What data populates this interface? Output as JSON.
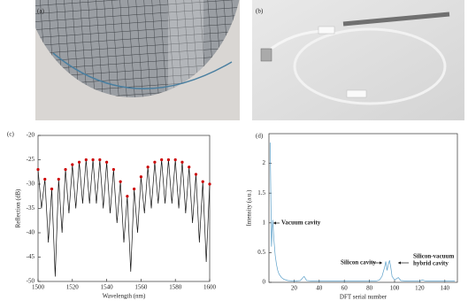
{
  "panel_labels": [
    "(a)",
    "(b)",
    "(c)",
    "(d)"
  ],
  "chart_data": [
    {
      "type": "line",
      "xlabel": "Wavelength (nm)",
      "ylabel": "Reflection (dB)",
      "xlim": [
        1500,
        1600
      ],
      "xticks": [
        1500,
        1520,
        1540,
        1560,
        1580,
        1600
      ],
      "ylim": [
        -50,
        -20
      ],
      "yticks": [
        -50,
        -45,
        -40,
        -35,
        -30,
        -25,
        -20
      ],
      "peak_marker_color": "#cc0000",
      "series": [
        {
          "color": "#111111",
          "x": [
            1500,
            1502,
            1504,
            1506,
            1508,
            1510,
            1512,
            1514,
            1516,
            1518,
            1520,
            1522,
            1524,
            1526,
            1528,
            1530,
            1532,
            1534,
            1536,
            1538,
            1540,
            1542,
            1544,
            1546,
            1548,
            1550,
            1552,
            1554,
            1556,
            1558,
            1560,
            1562,
            1564,
            1566,
            1568,
            1570,
            1572,
            1574,
            1576,
            1578,
            1580,
            1582,
            1584,
            1586,
            1588,
            1590,
            1592,
            1594,
            1596,
            1598,
            1600
          ],
          "values": [
            -27,
            -35,
            -29,
            -42,
            -31,
            -49,
            -29,
            -40,
            -27,
            -36,
            -26,
            -35,
            -25.5,
            -34,
            -25,
            -34,
            -25,
            -34,
            -25,
            -35,
            -25.5,
            -36,
            -27,
            -38,
            -29.5,
            -42,
            -32.5,
            -48,
            -31,
            -40,
            -28.5,
            -36,
            -26.5,
            -35,
            -25.5,
            -34,
            -25,
            -34,
            -25,
            -34,
            -25,
            -35,
            -25.5,
            -36,
            -26.5,
            -38,
            -28,
            -42,
            -29.5,
            -46,
            -30
          ]
        }
      ]
    },
    {
      "type": "line",
      "xlabel": "DFT serial number",
      "ylabel": "Intensity (a.u.)",
      "xlim": [
        0,
        150
      ],
      "xticks": [
        20,
        40,
        60,
        80,
        100,
        120,
        140
      ],
      "ylim": [
        0,
        2.5
      ],
      "yticks": [
        0,
        0.5,
        1,
        1.5,
        2
      ],
      "annotations": [
        {
          "lines": [
            "Vacuum cavity"
          ]
        },
        {
          "lines": [
            "Silicon cavity"
          ]
        },
        {
          "lines": [
            "Silicon-vacuum",
            "hybrid cavity"
          ]
        }
      ],
      "series": [
        {
          "color": "#5a9fc9",
          "x": [
            1,
            2,
            3,
            4,
            5,
            6,
            7,
            8,
            10,
            12,
            15,
            20,
            25,
            28,
            30,
            35,
            40,
            50,
            60,
            70,
            80,
            85,
            88,
            90,
            92,
            93,
            94,
            95,
            96,
            97,
            98,
            100,
            103,
            105,
            110,
            115,
            120,
            122,
            125,
            130,
            140,
            148
          ],
          "values": [
            2.35,
            0.6,
            1.05,
            0.7,
            0.45,
            0.3,
            0.2,
            0.14,
            0.08,
            0.05,
            0.03,
            0.02,
            0.03,
            0.1,
            0.03,
            0.02,
            0.02,
            0.02,
            0.02,
            0.02,
            0.02,
            0.02,
            0.04,
            0.1,
            0.25,
            0.35,
            0.2,
            0.3,
            0.37,
            0.25,
            0.1,
            0.04,
            0.08,
            0.03,
            0.02,
            0.02,
            0.02,
            0.04,
            0.02,
            0.02,
            0.02,
            0.02
          ]
        }
      ]
    }
  ]
}
